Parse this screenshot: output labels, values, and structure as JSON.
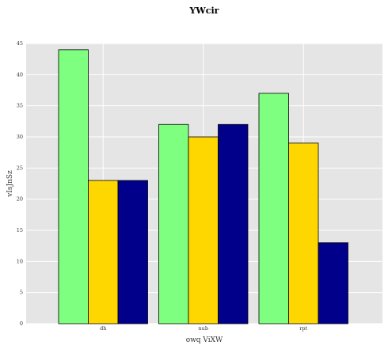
{
  "chart_data": {
    "type": "bar",
    "title": "YWcir",
    "xlabel": "owq ViXW",
    "ylabel": "vIsJnSz",
    "categories": [
      "dh",
      "nub",
      "rpt"
    ],
    "series": [
      {
        "values": [
          44,
          32,
          37
        ],
        "color": "#7fff7f"
      },
      {
        "values": [
          23,
          30,
          29
        ],
        "color": "#ffd700"
      },
      {
        "values": [
          23,
          32,
          13
        ],
        "color": "#00008b"
      }
    ],
    "ylim": [
      0,
      45
    ],
    "yticks": [
      0,
      5,
      10,
      15,
      20,
      25,
      30,
      35,
      40,
      45
    ],
    "grid": true,
    "background": "#e5e5e5",
    "bar_edge_color": "#000000"
  }
}
